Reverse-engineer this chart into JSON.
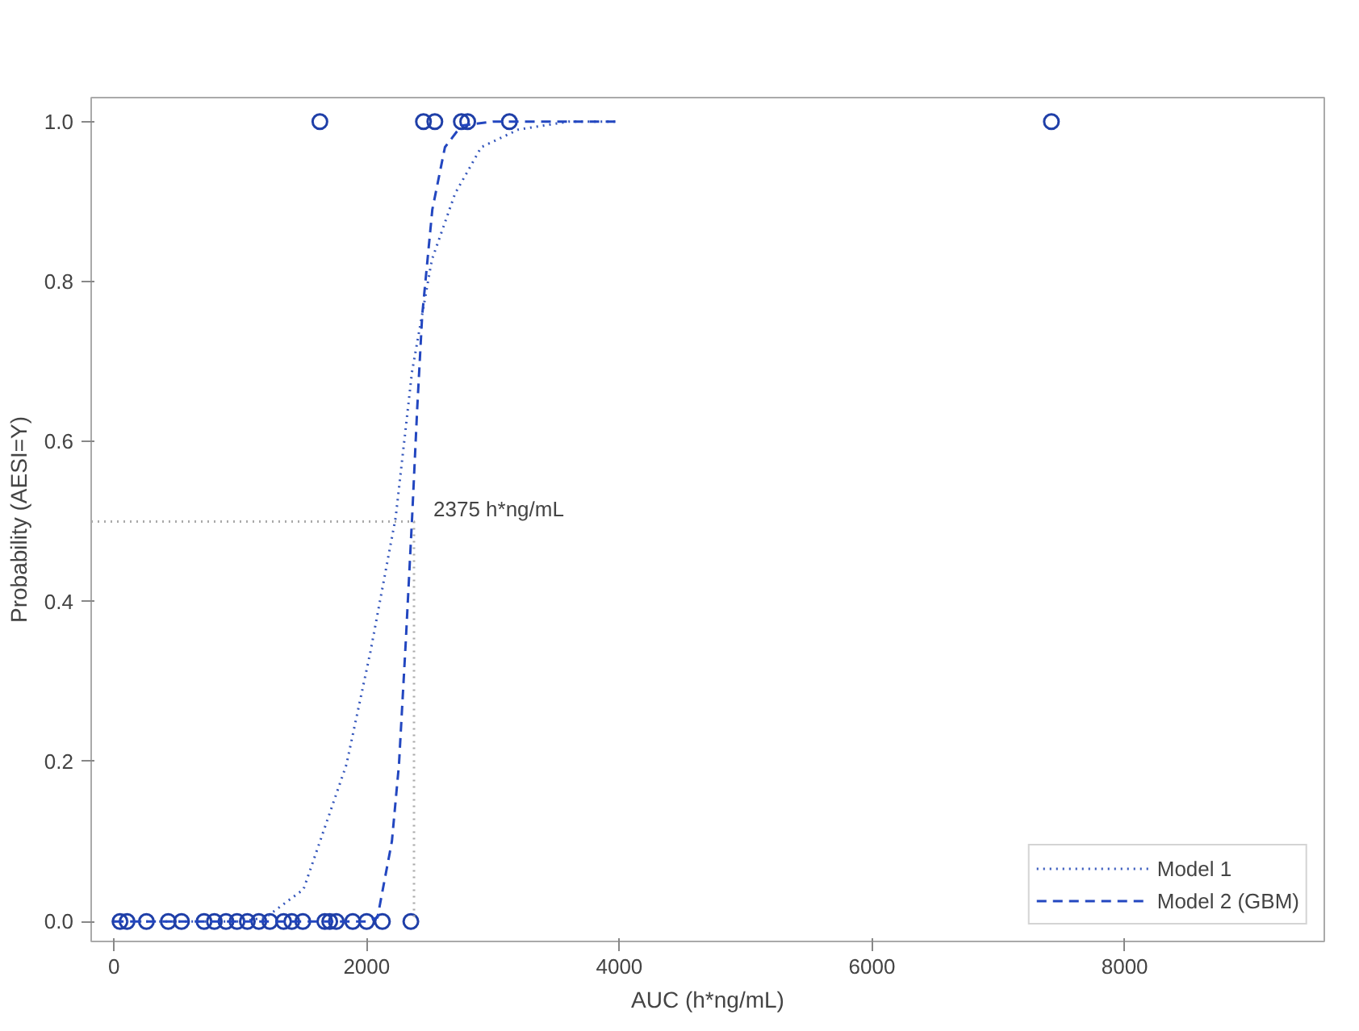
{
  "chart_data": {
    "type": "line",
    "xlabel": "AUC (h*ng/mL)",
    "ylabel": "Probability (AESI=Y)",
    "xlim": [
      -180,
      9580
    ],
    "xticks": [
      0,
      2000,
      4000,
      6000,
      8000
    ],
    "ylim": [
      -0.025,
      1.03
    ],
    "yticks": [
      {
        "value": 0,
        "label": "0.0"
      },
      0.2,
      0.4,
      0.6,
      0.8,
      {
        "value": 1,
        "label": "1.0"
      }
    ],
    "grid": false,
    "legend": "bottom right",
    "annotations": [
      {
        "text": "2375 h*ng/mL",
        "x": 2375,
        "y": 0.5
      }
    ],
    "series": [
      {
        "type": "scatter",
        "marker": "circle",
        "color": "#1f3fa8",
        "x": [
          48,
          104,
          257,
          430,
          535,
          713,
          795,
          887,
          974,
          1056,
          1147,
          1234,
          1343,
          1408,
          1495,
          1669,
          1708,
          1760,
          1890,
          2000,
          2125,
          2350,
          1630,
          2450,
          2540,
          2750,
          2800,
          3130,
          7420
        ],
        "values": [
          0,
          0,
          0,
          0,
          0,
          0,
          0,
          0,
          0,
          0,
          0,
          0,
          0,
          0,
          0,
          0,
          0,
          0,
          0,
          0,
          0,
          0,
          1,
          1,
          1,
          1,
          1,
          1,
          1
        ]
      },
      {
        "color": "#aaaaaa",
        "line_style": "dotted",
        "x": [
          -180,
          2375,
          2375
        ],
        "values": [
          0.5,
          0.5,
          0
        ]
      },
      {
        "name": "Model 1",
        "color": "#3355bb",
        "line_style": "dotted",
        "x": [
          0,
          1000,
          1200,
          1500,
          1840,
          2030,
          2230,
          2360,
          2516,
          2700,
          2907,
          3200,
          3600,
          4000
        ],
        "values": [
          0,
          0,
          0.005,
          0.04,
          0.196,
          0.337,
          0.505,
          0.688,
          0.827,
          0.91,
          0.968,
          0.99,
          1,
          1
        ]
      },
      {
        "name": "Model 2 (GBM)",
        "color": "#2347c0",
        "line_style": "dashed",
        "x": [
          0,
          1500,
          2000,
          2086,
          2200,
          2256,
          2310,
          2360,
          2400,
          2440,
          2520,
          2620,
          2750,
          3000,
          4000
        ],
        "values": [
          0,
          0,
          0,
          0.005,
          0.1,
          0.196,
          0.35,
          0.505,
          0.64,
          0.758,
          0.89,
          0.968,
          0.995,
          1,
          1
        ]
      }
    ]
  }
}
